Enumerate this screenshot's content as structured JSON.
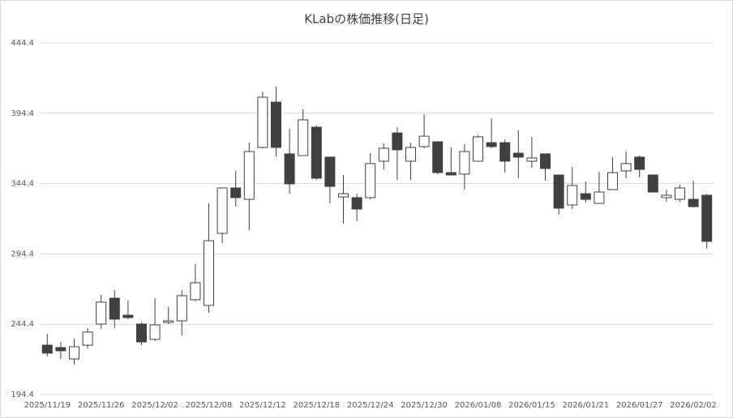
{
  "chart_data": {
    "type": "candlestick",
    "title": "KLabの株価推移(日足)",
    "categories": [
      "2025/11/19",
      null,
      null,
      null,
      "2025/11/26",
      null,
      null,
      null,
      "2025/12/02",
      null,
      null,
      null,
      "2025/12/08",
      null,
      null,
      null,
      "2025/12/12",
      null,
      null,
      null,
      "2025/12/18",
      null,
      null,
      null,
      "2025/12/24",
      null,
      null,
      null,
      "2025/12/30",
      null,
      null,
      null,
      "2026/01/08",
      null,
      null,
      null,
      "2026/01/15",
      null,
      null,
      null,
      "2026/01/21",
      null,
      null,
      null,
      "2026/01/27",
      null,
      null,
      null,
      "2026/02/02",
      null
    ],
    "open": [
      229.5,
      227.8,
      219.7,
      229.5,
      244.5,
      262.9,
      250.8,
      244.5,
      233.6,
      245.7,
      246.8,
      261.8,
      257.8,
      309.0,
      341.3,
      333.2,
      370.1,
      402.3,
      365.5,
      364.3,
      384.5,
      363.2,
      334.9,
      334.4,
      334.4,
      360.3,
      380.4,
      360.3,
      370.7,
      374.1,
      352.2,
      351.1,
      360.3,
      373.5,
      373.5,
      366.0,
      360.3,
      365.5,
      350.5,
      329.2,
      337.2,
      330.3,
      340.1,
      353.4,
      363.2,
      350.5,
      334.4,
      333.2,
      333.2,
      336.1
    ],
    "high": [
      237.6,
      231.8,
      234.1,
      241.6,
      265.2,
      268.7,
      261.2,
      245.7,
      262.9,
      256.6,
      268.7,
      287.1,
      330.3,
      341.3,
      353.4,
      373.5,
      409.8,
      413.3,
      383.3,
      397.2,
      385.6,
      363.2,
      350.5,
      337.2,
      366.0,
      373.0,
      384.5,
      373.5,
      393.7,
      374.1,
      370.1,
      372.4,
      378.7,
      390.8,
      375.8,
      382.2,
      377.6,
      365.5,
      350.5,
      356.3,
      345.9,
      352.8,
      363.2,
      367.2,
      364.3,
      350.5,
      340.1,
      343.6,
      346.5,
      337.2
    ],
    "low": [
      221.5,
      219.7,
      215.7,
      227.2,
      241.1,
      241.6,
      248.0,
      229.5,
      232.4,
      244.5,
      236.4,
      260.6,
      252.6,
      302.1,
      328.0,
      311.3,
      369.5,
      363.7,
      337.2,
      364.3,
      347.0,
      330.3,
      315.9,
      317.7,
      333.2,
      354.5,
      347.0,
      347.0,
      369.5,
      351.1,
      350.5,
      340.1,
      360.3,
      369.5,
      352.2,
      348.2,
      355.7,
      346.5,
      322.3,
      326.3,
      330.9,
      330.3,
      340.1,
      348.2,
      348.8,
      337.8,
      331.5,
      331.5,
      327.5,
      298.1
    ],
    "close": [
      223.8,
      225.5,
      228.4,
      238.8,
      260.1,
      248.0,
      249.1,
      231.8,
      243.9,
      246.8,
      264.7,
      273.9,
      303.8,
      341.3,
      334.4,
      367.2,
      405.8,
      370.1,
      344.2,
      389.7,
      348.2,
      342.4,
      337.2,
      326.3,
      358.6,
      369.5,
      368.4,
      370.1,
      378.1,
      352.2,
      350.5,
      367.2,
      377.6,
      370.7,
      360.3,
      363.2,
      362.6,
      355.1,
      326.9,
      343.0,
      333.2,
      338.4,
      352.2,
      358.6,
      354.5,
      338.4,
      336.1,
      341.3,
      328.0,
      303.3
    ],
    "up_color": "#ffffff",
    "down_color": "#404040",
    "ylim": [
      194.4,
      444.4
    ],
    "yticks": [
      194.4,
      244.4,
      294.4,
      344.4,
      394.4,
      444.4
    ],
    "grid": true
  }
}
